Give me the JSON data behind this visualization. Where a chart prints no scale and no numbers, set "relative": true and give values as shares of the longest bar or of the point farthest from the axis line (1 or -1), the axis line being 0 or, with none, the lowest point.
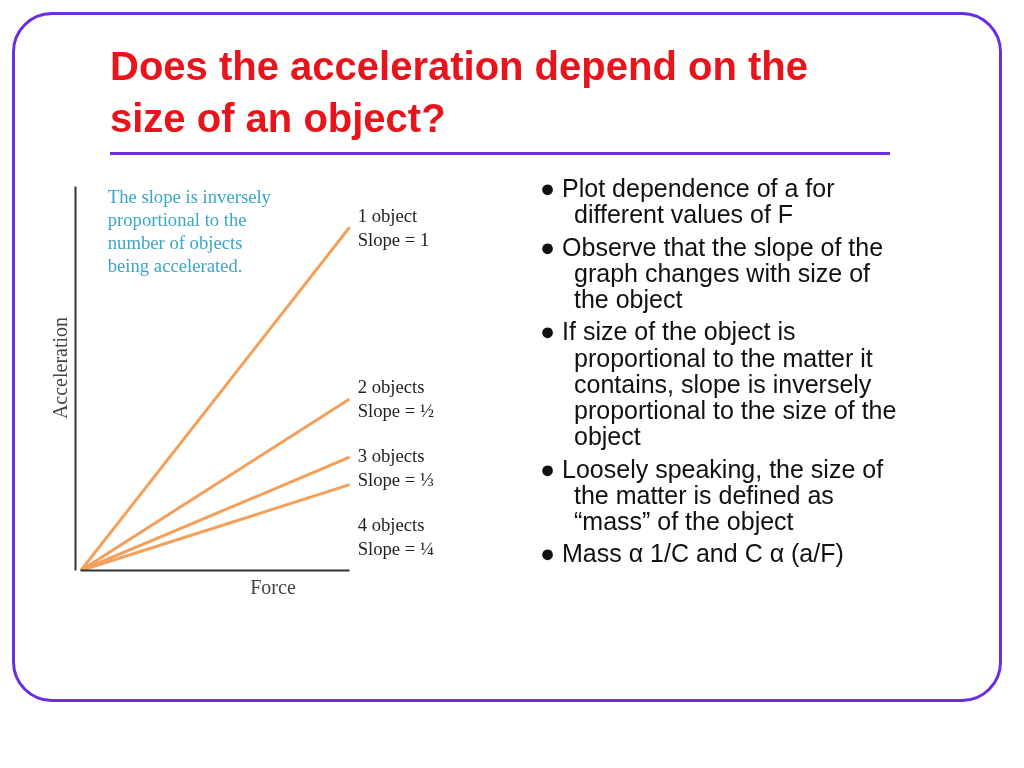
{
  "chart_data": {
    "type": "line",
    "title": "Does the acceleration depend on the size of an object?",
    "xlabel": "Force",
    "ylabel": "Acceleration",
    "relative": true,
    "legend": false,
    "grid": false,
    "marker": "none",
    "line_style": "solid",
    "categories": [
      null,
      null
    ],
    "series": [
      {
        "name": "1 object\nSlope = 1",
        "color": "#f5a05a",
        "values": [
          0,
          1
        ]
      },
      {
        "name": "2 objects\nSlope = ½",
        "color": "#f5a05a",
        "values": [
          0,
          0.5
        ]
      },
      {
        "name": "3 objects\nSlope = ⅓",
        "color": "#f5a05a",
        "values": [
          0,
          0.33
        ]
      },
      {
        "name": "4 objects\nSlope = ¼",
        "color": "#f5a05a",
        "values": [
          0,
          0.25
        ]
      }
    ],
    "annotations": [
      "The slope is inversely\nproportional to the\nnumber of objects\nbeing accelerated.",
      "● Plot dependence of a for different values of F",
      "● Observe that the slope of the graph changes with size of the object",
      "● If size of the object is proportional to the matter it contains, slope is inversely proportional to the size of the object",
      "● Loosely speaking, the size of the matter is defined as “mass” of the object",
      "● Mass α 1/C and C α (a/F)"
    ]
  }
}
